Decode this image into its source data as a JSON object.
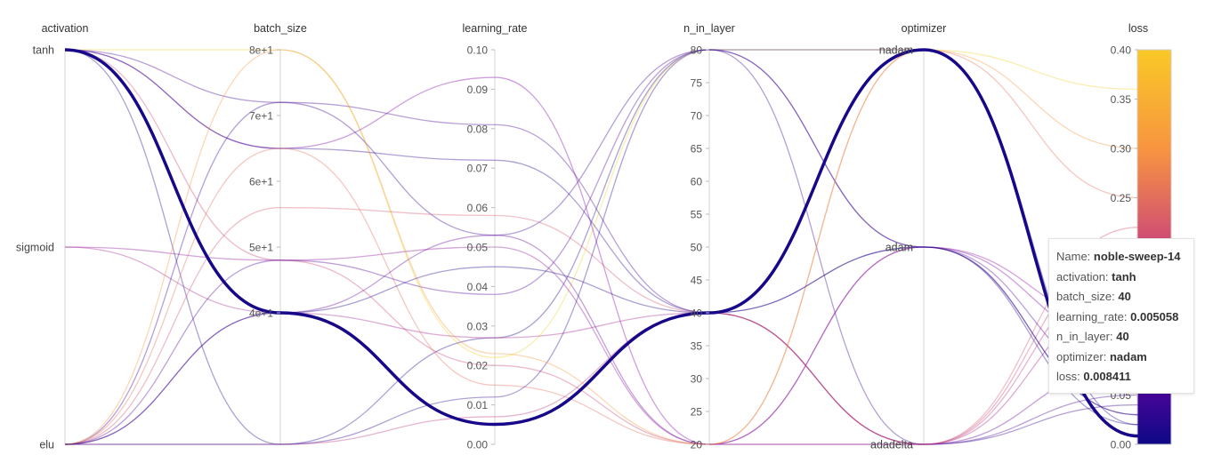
{
  "chart_data": {
    "type": "parallel-coordinates",
    "dimensions": [
      {
        "key": "activation",
        "label": "activation",
        "kind": "categorical",
        "categories": [
          "elu",
          "sigmoid",
          "tanh"
        ]
      },
      {
        "key": "batch_size",
        "label": "batch_size",
        "kind": "numeric",
        "range": [
          20,
          80
        ],
        "ticks": [
          40,
          50,
          60,
          70,
          80
        ],
        "tick_labels": [
          "4e+1",
          "5e+1",
          "6e+1",
          "7e+1",
          "8e+1"
        ]
      },
      {
        "key": "learning_rate",
        "label": "learning_rate",
        "kind": "numeric",
        "range": [
          0,
          0.1
        ],
        "ticks": [
          0,
          0.01,
          0.02,
          0.03,
          0.04,
          0.05,
          0.06,
          0.07,
          0.08,
          0.09,
          0.1
        ],
        "tick_labels": [
          "0.00",
          "0.01",
          "0.02",
          "0.03",
          "0.04",
          "0.05",
          "0.06",
          "0.07",
          "0.08",
          "0.09",
          "0.10"
        ]
      },
      {
        "key": "n_in_layer",
        "label": "n_in_layer",
        "kind": "numeric",
        "range": [
          20,
          80
        ],
        "ticks": [
          20,
          25,
          30,
          35,
          40,
          45,
          50,
          55,
          60,
          65,
          70,
          75,
          80
        ],
        "tick_labels": [
          "20",
          "25",
          "30",
          "35",
          "40",
          "45",
          "50",
          "55",
          "60",
          "65",
          "70",
          "75",
          "80"
        ]
      },
      {
        "key": "optimizer",
        "label": "optimizer",
        "kind": "categorical",
        "categories": [
          "adadelta",
          "adam",
          "nadam"
        ]
      },
      {
        "key": "loss",
        "label": "loss",
        "kind": "numeric",
        "range": [
          0,
          0.4
        ],
        "ticks": [
          0,
          0.05,
          0.1,
          0.15,
          0.2,
          0.25,
          0.3,
          0.35,
          0.4
        ],
        "tick_labels": [
          "0.00",
          "0.05",
          "0.10",
          "0.15",
          "0.20",
          "0.25",
          "0.30",
          "0.35",
          "0.40"
        ]
      }
    ],
    "colorscale": {
      "name": "plasma",
      "stops": [
        "#0d0887",
        "#7e03a8",
        "#cc4778",
        "#f89540",
        "#f0f921"
      ],
      "range": [
        0,
        0.4
      ]
    },
    "highlighted": {
      "name": "noble-sweep-14",
      "activation": "tanh",
      "batch_size": 40,
      "learning_rate": 0.005058,
      "n_in_layer": 40,
      "optimizer": "nadam",
      "loss": 0.008411
    },
    "runs": [
      {
        "activation": "tanh",
        "batch_size": 40,
        "learning_rate": 0.005058,
        "n_in_layer": 40,
        "optimizer": "nadam",
        "loss": 0.008411
      },
      {
        "activation": "tanh",
        "batch_size": 80,
        "learning_rate": 0.022,
        "n_in_layer": 80,
        "optimizer": "nadam",
        "loss": 0.36
      },
      {
        "activation": "tanh",
        "batch_size": 72,
        "learning_rate": 0.081,
        "n_in_layer": 40,
        "optimizer": "adadelta",
        "loss": 0.05
      },
      {
        "activation": "tanh",
        "batch_size": 65,
        "learning_rate": 0.093,
        "n_in_layer": 20,
        "optimizer": "adam",
        "loss": 0.1
      },
      {
        "activation": "tanh",
        "batch_size": 48,
        "learning_rate": 0.02,
        "n_in_layer": 20,
        "optimizer": "adadelta",
        "loss": 0.2
      },
      {
        "activation": "tanh",
        "batch_size": 65,
        "learning_rate": 0.072,
        "n_in_layer": 40,
        "optimizer": "adam",
        "loss": 0.03
      },
      {
        "activation": "tanh",
        "batch_size": 20,
        "learning_rate": 0.027,
        "n_in_layer": 80,
        "optimizer": "nadam",
        "loss": 0.02
      },
      {
        "activation": "sigmoid",
        "batch_size": 48,
        "learning_rate": 0.05,
        "n_in_layer": 20,
        "optimizer": "adam",
        "loss": 0.12
      },
      {
        "activation": "sigmoid",
        "batch_size": 40,
        "learning_rate": 0.027,
        "n_in_layer": 40,
        "optimizer": "adadelta",
        "loss": 0.15
      },
      {
        "activation": "elu",
        "batch_size": 72,
        "learning_rate": 0.053,
        "n_in_layer": 80,
        "optimizer": "adadelta",
        "loss": 0.04
      },
      {
        "activation": "elu",
        "batch_size": 65,
        "learning_rate": 0.015,
        "n_in_layer": 20,
        "optimizer": "nadam",
        "loss": 0.25
      },
      {
        "activation": "elu",
        "batch_size": 56,
        "learning_rate": 0.058,
        "n_in_layer": 40,
        "optimizer": "adadelta",
        "loss": 0.22
      },
      {
        "activation": "elu",
        "batch_size": 48,
        "learning_rate": 0.038,
        "n_in_layer": 80,
        "optimizer": "adam",
        "loss": 0.06
      },
      {
        "activation": "elu",
        "batch_size": 40,
        "learning_rate": 0.053,
        "n_in_layer": 20,
        "optimizer": "adadelta",
        "loss": 0.08
      },
      {
        "activation": "elu",
        "batch_size": 20,
        "learning_rate": 0.007,
        "n_in_layer": 40,
        "optimizer": "adadelta",
        "loss": 0.18
      },
      {
        "activation": "elu",
        "batch_size": 20,
        "learning_rate": 0.012,
        "n_in_layer": 80,
        "optimizer": "adam",
        "loss": 0.03
      },
      {
        "activation": "elu",
        "batch_size": 80,
        "learning_rate": 0.023,
        "n_in_layer": 20,
        "optimizer": "nadam",
        "loss": 0.3
      },
      {
        "activation": "elu",
        "batch_size": 40,
        "learning_rate": 0.045,
        "n_in_layer": 40,
        "optimizer": "adam",
        "loss": 0.02
      }
    ]
  },
  "tooltip": {
    "rows": [
      {
        "label": "Name:",
        "value": "noble-sweep-14"
      },
      {
        "label": "activation:",
        "value": "tanh"
      },
      {
        "label": "batch_size:",
        "value": "40"
      },
      {
        "label": "learning_rate:",
        "value": "0.005058"
      },
      {
        "label": "n_in_layer:",
        "value": "40"
      },
      {
        "label": "optimizer:",
        "value": "nadam"
      },
      {
        "label": "loss:",
        "value": "0.008411"
      }
    ]
  }
}
